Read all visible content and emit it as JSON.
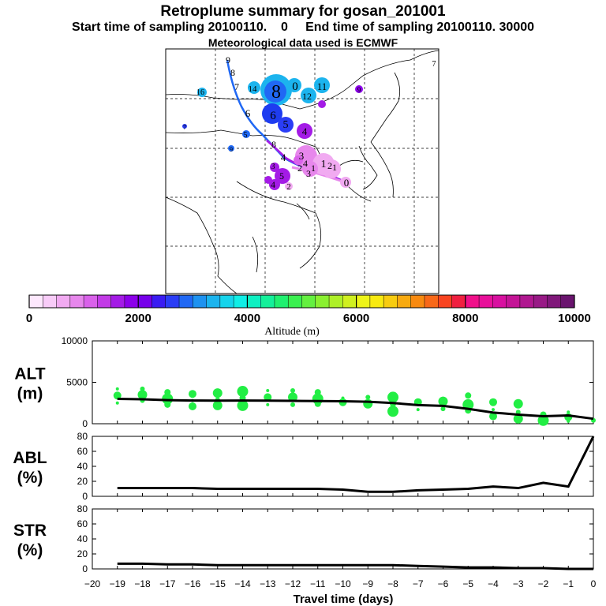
{
  "header": {
    "title": "Retroplume summary for gosan_201001",
    "subtitle": "Start time of sampling 20100110.    0     End time of sampling 20100110. 30000",
    "met": "Meteorological data used is ECMWF"
  },
  "colorbar": {
    "label": "Altitude (m)",
    "ticks": [
      "0",
      "2000",
      "4000",
      "6000",
      "8000",
      "10000"
    ],
    "range": [
      0,
      10000
    ],
    "colors": [
      "#fde8fd",
      "#f8ccf8",
      "#f1aaf1",
      "#e787ec",
      "#d962ea",
      "#c23be6",
      "#a41be6",
      "#8c00ea",
      "#7600ea",
      "#3a1cf2",
      "#2a3df6",
      "#2068f4",
      "#1e92f0",
      "#1cb4ee",
      "#16d4ec",
      "#10eee6",
      "#0ef0c2",
      "#14f09a",
      "#20f070",
      "#3af050",
      "#64f040",
      "#8af030",
      "#aef028",
      "#d0f020",
      "#eef418",
      "#f8ea10",
      "#f8cc10",
      "#f8aa10",
      "#f88a10",
      "#f86818",
      "#f84420",
      "#f02040",
      "#f0108a",
      "#e8109a",
      "#d810a0",
      "#c41496",
      "#b01890",
      "#981a86",
      "#80187a",
      "#6a146e"
    ]
  },
  "map": {
    "plume_labels": [
      {
        "t": "9",
        "c": "#3a60e0"
      },
      {
        "t": "8",
        "c": "#3a60e0"
      },
      {
        "t": "7",
        "c": "#3a60e0"
      },
      {
        "t": "14",
        "c": "#1cb4ee"
      },
      {
        "t": "16",
        "c": "#1cb4ee"
      },
      {
        "t": "8",
        "c": "#2a3df6"
      },
      {
        "t": "0",
        "c": "#1cb4ee"
      },
      {
        "t": "11",
        "c": "#1cb4ee"
      },
      {
        "t": "12",
        "c": "#1cb4ee"
      },
      {
        "t": "9",
        "c": "#8c00ea"
      },
      {
        "t": "7",
        "c": "#c23be6"
      },
      {
        "t": "6",
        "c": "#2a3df6"
      },
      {
        "t": "6",
        "c": "#1e3cf0"
      },
      {
        "t": "5",
        "c": "#7a10e8"
      },
      {
        "t": "4",
        "c": "#a41be6"
      },
      {
        "t": "5",
        "c": "#2068f4"
      },
      {
        "t": "8",
        "c": "#3a1cf2"
      },
      {
        "t": "9",
        "c": "#2a3df6"
      },
      {
        "t": "4",
        "c": "#2a3df6"
      },
      {
        "t": "3",
        "c": "#d962ea"
      },
      {
        "t": "4",
        "c": "#d962ea"
      },
      {
        "t": "1",
        "c": "#e787ec"
      },
      {
        "t": "2",
        "c": "#e787ec"
      },
      {
        "t": "3",
        "c": "#c23be6"
      },
      {
        "t": "3",
        "c": "#a41be6"
      },
      {
        "t": "5",
        "c": "#a41be6"
      },
      {
        "t": "4",
        "c": "#a41be6"
      },
      {
        "t": "2",
        "c": "#d962ea"
      },
      {
        "t": "0",
        "c": "#e787ec"
      },
      {
        "t": "1",
        "c": "#e787ec"
      },
      {
        "t": "2",
        "c": "#e787ec"
      },
      {
        "t": "1",
        "c": "#e787ec"
      },
      {
        "t": "7",
        "c": "#c23be6"
      }
    ]
  },
  "chart_data": [
    {
      "type": "scatter",
      "panel": "ALT",
      "ylabel": "ALT\n(m)",
      "ylabel_top": "ALT",
      "ylabel_bottom": "(m)",
      "ylim": [
        0,
        10000
      ],
      "yticks": [
        "0",
        "5000",
        "10000"
      ],
      "line": {
        "x": [
          -19,
          -18,
          -17,
          -16,
          -15,
          -14,
          -13,
          -12,
          -11,
          -10,
          -9,
          -8,
          -7,
          -6,
          -5,
          -4,
          -3,
          -2,
          -1,
          0
        ],
        "y": [
          3000,
          2950,
          2850,
          2800,
          2780,
          2800,
          2780,
          2760,
          2740,
          2720,
          2650,
          2500,
          2250,
          2150,
          1800,
          1350,
          1100,
          900,
          1000,
          600
        ]
      },
      "dots_series": [
        {
          "x": -19,
          "y": [
            2500,
            3400,
            4200
          ]
        },
        {
          "x": -18,
          "y": [
            2800,
            3500,
            4200
          ]
        },
        {
          "x": -17,
          "y": [
            2300,
            3000,
            3800
          ]
        },
        {
          "x": -16,
          "y": [
            2100,
            2800,
            3600
          ]
        },
        {
          "x": -15,
          "y": [
            2200,
            2900,
            3700
          ]
        },
        {
          "x": -14,
          "y": [
            2200,
            3100,
            3900
          ]
        },
        {
          "x": -13,
          "y": [
            2300,
            3200,
            4000
          ]
        },
        {
          "x": -12,
          "y": [
            2300,
            3200,
            4000
          ]
        },
        {
          "x": -11,
          "y": [
            2400,
            3000,
            3800
          ]
        },
        {
          "x": -10,
          "y": [
            2600,
            3100
          ]
        },
        {
          "x": -9,
          "y": [
            2400,
            3200
          ]
        },
        {
          "x": -8,
          "y": [
            1500,
            2400,
            3200
          ]
        },
        {
          "x": -7,
          "y": [
            1700,
            2600
          ]
        },
        {
          "x": -6,
          "y": [
            1800,
            2700
          ]
        },
        {
          "x": -5,
          "y": [
            1600,
            2300,
            3400
          ]
        },
        {
          "x": -4,
          "y": [
            900,
            1700,
            2600
          ]
        },
        {
          "x": -3,
          "y": [
            600,
            1400,
            2400
          ]
        },
        {
          "x": -2,
          "y": [
            400,
            1100
          ]
        },
        {
          "x": -1,
          "y": [
            300,
            800,
            1400
          ]
        },
        {
          "x": 0,
          "y": [
            400
          ]
        }
      ],
      "color": "#22ee44"
    },
    {
      "type": "line",
      "panel": "ABL",
      "ylabel_top": "ABL",
      "ylabel_bottom": "(%)",
      "ylim": [
        0,
        80
      ],
      "yticks": [
        "0",
        "20",
        "40",
        "60",
        "80"
      ],
      "x": [
        -19,
        -18,
        -17,
        -16,
        -15,
        -14,
        -13,
        -12,
        -11,
        -10,
        -9,
        -8,
        -7,
        -6,
        -5,
        -4,
        -3,
        -2,
        -1,
        0
      ],
      "y": [
        11,
        11,
        11,
        11,
        10,
        10,
        10,
        10,
        10,
        9,
        6,
        6,
        8,
        9,
        10,
        13,
        11,
        18,
        13,
        80
      ]
    },
    {
      "type": "line",
      "panel": "STR",
      "ylabel_top": "STR",
      "ylabel_bottom": "(%)",
      "ylim": [
        0,
        80
      ],
      "yticks": [
        "0",
        "20",
        "40",
        "60",
        "80"
      ],
      "x": [
        -19,
        -18,
        -17,
        -16,
        -15,
        -14,
        -13,
        -12,
        -11,
        -10,
        -9,
        -8,
        -7,
        -6,
        -5,
        -4,
        -3,
        -2,
        -1,
        0
      ],
      "y": [
        7,
        7,
        6,
        6,
        5,
        5,
        5,
        5,
        5,
        5,
        5,
        5,
        4,
        3,
        2,
        2,
        1,
        1,
        0,
        0
      ]
    },
    {
      "type": "axis",
      "xlabel": "Travel time (days)",
      "xlim": [
        -20,
        0
      ],
      "xticks": [
        "−20",
        "−19",
        "−18",
        "−17",
        "−16",
        "−15",
        "−14",
        "−13",
        "−12",
        "−11",
        "−10",
        "−9",
        "−8",
        "−7",
        "−6",
        "−5",
        "−4",
        "−3",
        "−2",
        "−1",
        "0"
      ]
    }
  ]
}
